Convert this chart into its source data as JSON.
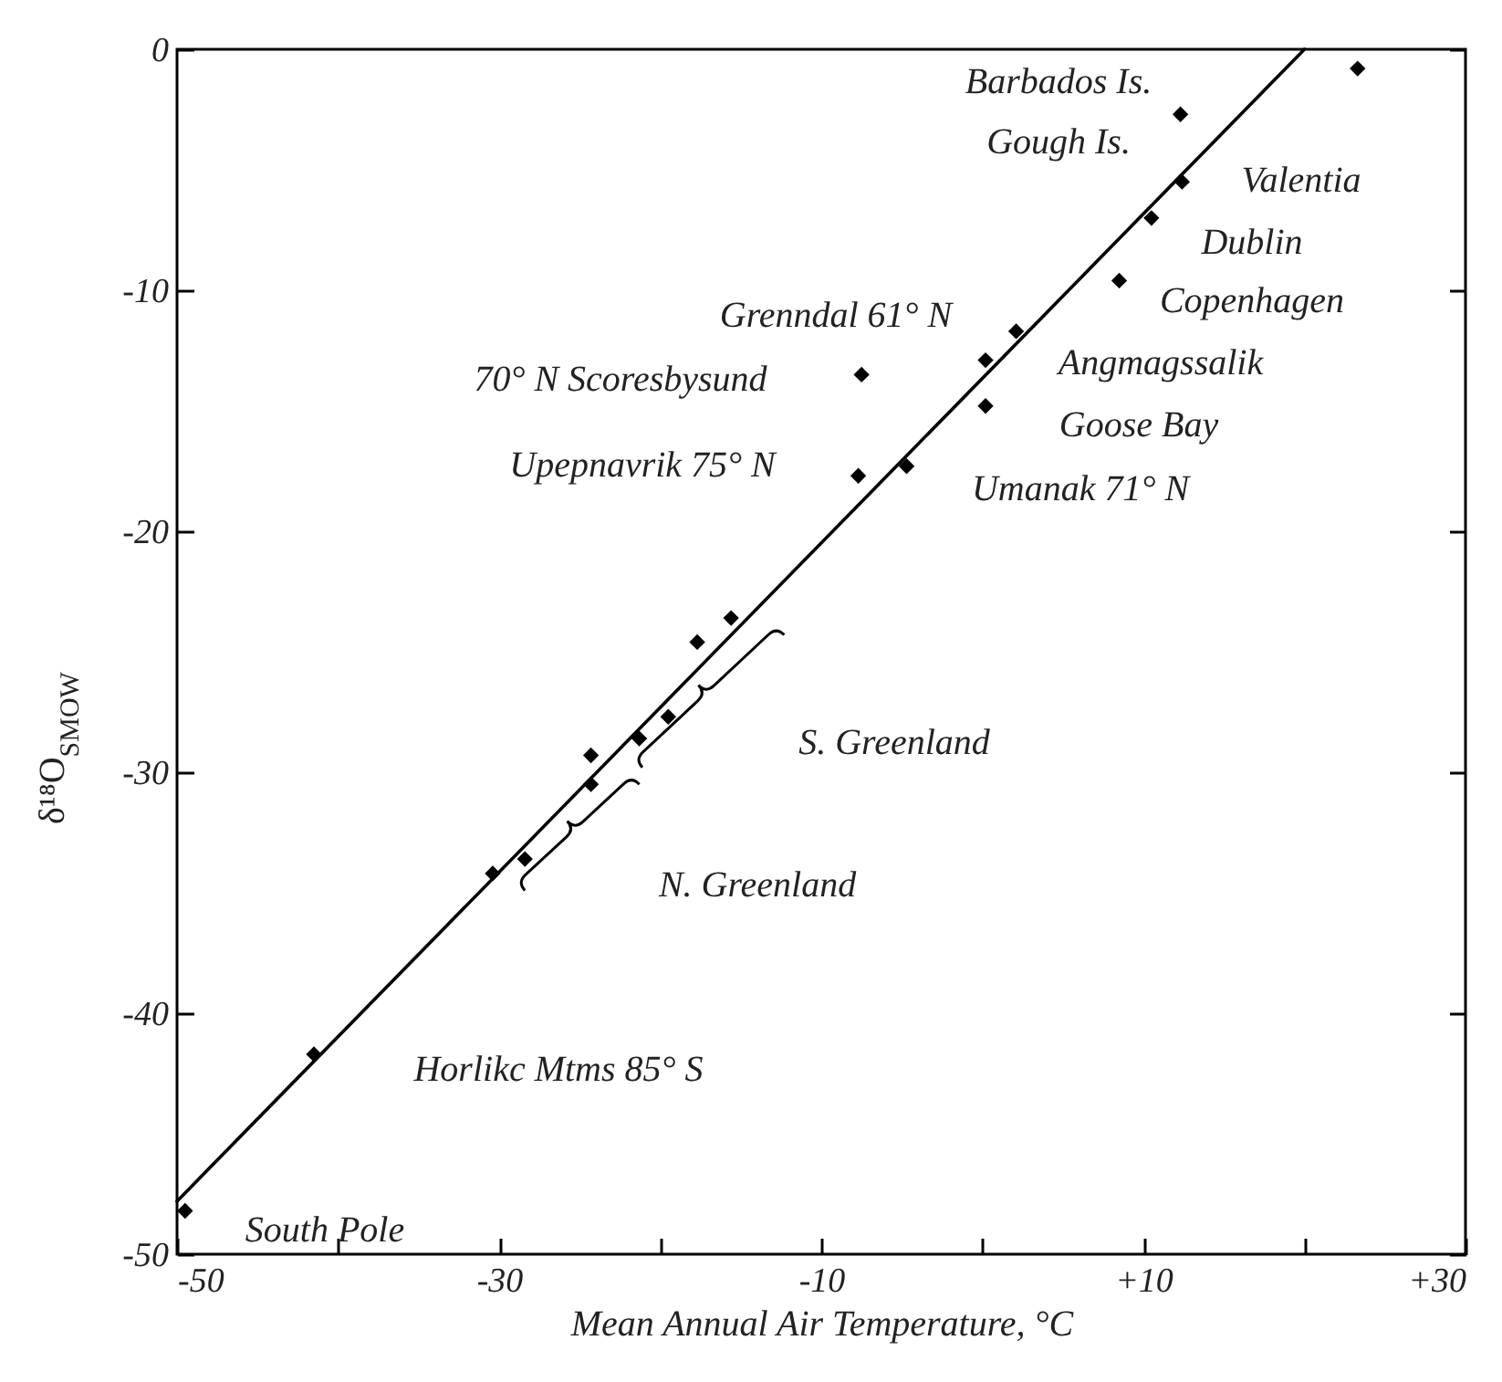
{
  "chart_data": {
    "type": "scatter",
    "xlabel": "Mean Annual Air Temperature, °C",
    "ylabel": "δ¹⁸O$_{SMOW}$",
    "xlim": [
      -50,
      30
    ],
    "ylim": [
      -50,
      0
    ],
    "xticks": [
      -50,
      {
        "value": -40,
        "label": null
      },
      -30,
      {
        "value": -20,
        "label": null
      },
      -10,
      {
        "value": 0,
        "label": null
      },
      {
        "value": 10,
        "label": "+10"
      },
      {
        "value": 20,
        "label": null
      },
      {
        "value": 30,
        "label": "+30"
      }
    ],
    "yticks": [
      0,
      -10,
      -20,
      -30,
      -40,
      -50
    ],
    "marker": "diamond",
    "series": [
      {
        "color": "#000000",
        "x": [
          23.3,
          12.3,
          12.4,
          10.5,
          8.5,
          2.1,
          0.2,
          0.2,
          -7.5,
          -7.7,
          -4.7,
          -17.7,
          -15.6,
          -19.5,
          -21.3,
          -24.3,
          -24.3,
          -30.4,
          -28.4,
          -41.5,
          -49.5
        ],
        "values": [
          -0.8,
          -2.7,
          -5.5,
          -7.0,
          -9.6,
          -11.7,
          -12.9,
          -14.8,
          -13.5,
          -17.7,
          -17.3,
          -24.6,
          -23.6,
          -27.7,
          -28.6,
          -29.3,
          -30.5,
          -34.2,
          -33.6,
          -41.7,
          -48.2
        ]
      },
      {
        "type": "line",
        "color": "#000000",
        "marker": "none",
        "x": [
          -50,
          20
        ],
        "values": [
          -47.8,
          0
        ]
      }
    ],
    "annotations": [
      "Barbados Is.",
      "Gough Is.",
      "Valentia",
      "Dublin",
      "Copenhagen",
      "Grenndal 61° N",
      "70° N Scoresbysund",
      "Angmagssalik",
      "Goose Bay",
      "Upepnavrik 75° N",
      "Umanak 71° N",
      "S. Greenland",
      "N. Greenland",
      "Horlikc Mtms 85° S",
      "South Pole"
    ]
  }
}
